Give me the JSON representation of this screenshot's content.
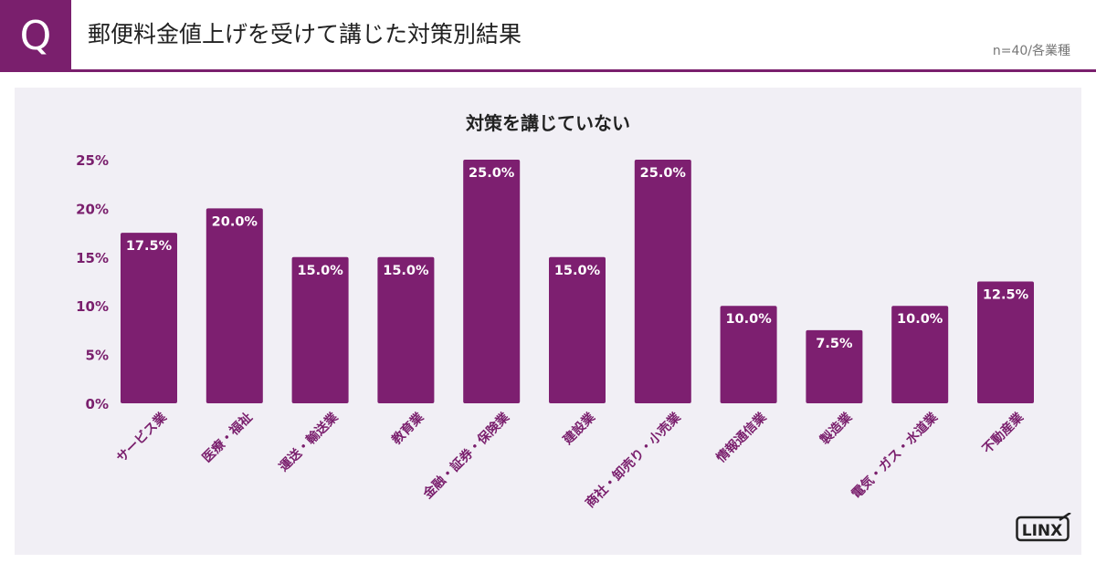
{
  "header": {
    "q_label": "Q",
    "title": "郵便料金値上げを受けて講じた対策別結果",
    "sample_note": "n=40/各業種"
  },
  "logo": {
    "text": "LINX"
  },
  "colors": {
    "accent": "#7a1f6d",
    "bar": "#7d1f70",
    "panel": "#f1eff5"
  },
  "chart_data": {
    "type": "bar",
    "title": "対策を講じていない",
    "xlabel": "",
    "ylabel": "",
    "ylim": [
      0,
      25
    ],
    "yticks": [
      "0%",
      "5%",
      "10%",
      "15%",
      "20%",
      "25%"
    ],
    "categories": [
      "サービス業",
      "医療・福祉",
      "運送・輸送業",
      "教育業",
      "金融・証券・保険業",
      "建設業",
      "商社・卸売り・小売業",
      "情報通信業",
      "製造業",
      "電気・ガス・水道業",
      "不動産業"
    ],
    "values": [
      17.5,
      20.0,
      15.0,
      15.0,
      25.0,
      15.0,
      25.0,
      10.0,
      7.5,
      10.0,
      12.5
    ],
    "value_labels": [
      "17.5%",
      "20.0%",
      "15.0%",
      "15.0%",
      "25.0%",
      "15.0%",
      "25.0%",
      "10.0%",
      "7.5%",
      "10.0%",
      "12.5%"
    ],
    "grid": false,
    "legend": "none"
  }
}
